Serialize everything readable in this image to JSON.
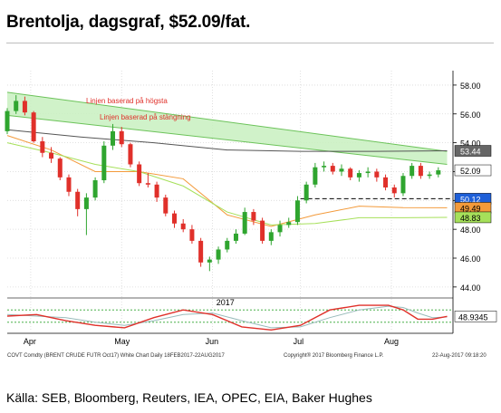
{
  "header": {
    "title": "Brentolja, dagsgraf, $52.09/fat."
  },
  "footer": {
    "source": "Källa: SEB, Bloomberg, Reuters, IEA, OPEC, EIA, Baker Hughes"
  },
  "chart_data": {
    "type": "line",
    "subtype": "candlestick",
    "title": "",
    "xlabel": "",
    "ylabel": "",
    "ylim": [
      43.3,
      59.0
    ],
    "yticks": [
      44.0,
      46.0,
      48.0,
      50.0,
      52.0,
      54.0,
      56.0,
      58.0
    ],
    "ytick_labels": [
      "44.00",
      "46.00",
      "48.00",
      "50.00",
      "52.00",
      "54.00",
      "56.00",
      "58.00"
    ],
    "month_labels": [
      {
        "label": "Apr",
        "day": 8
      },
      {
        "label": "May",
        "day": 39
      },
      {
        "label": "Jun",
        "day": 70
      },
      {
        "label": "Jul",
        "day": 100
      },
      {
        "label": "Aug",
        "day": 131
      }
    ],
    "year_label": "2017",
    "xlim": [
      0,
      152
    ],
    "grid": true,
    "channel": {
      "upper_label": "Linjen baserad på högsta",
      "lower_label": "Linjen baserad på stängning",
      "upper_start": 57.5,
      "upper_end": 53.4,
      "lower_start": 55.9,
      "lower_end": 52.5,
      "color": "#c8f0c0"
    },
    "support_level": 50.12,
    "price_tags": [
      {
        "label": "53.44",
        "value": 53.44,
        "bg": "#666666",
        "fg": "#ffffff"
      },
      {
        "label": "52.09",
        "value": 52.09,
        "bg": "#ffffff",
        "fg": "#000000"
      },
      {
        "label": "50.12",
        "value": 50.12,
        "bg": "#1e5fd8",
        "fg": "#ffffff"
      },
      {
        "label": "49.49",
        "value": 49.49,
        "bg": "#f39a3a",
        "fg": "#000000"
      },
      {
        "label": "48.83",
        "value": 48.83,
        "bg": "#a6e05a",
        "fg": "#000000"
      }
    ],
    "series": [
      {
        "name": "",
        "kind": "ohlc",
        "x": [
          0,
          3,
          6,
          9,
          12,
          15,
          18,
          21,
          24,
          27,
          30,
          33,
          36,
          39,
          42,
          45,
          48,
          51,
          54,
          57,
          60,
          63,
          66,
          69,
          72,
          75,
          78,
          81,
          84,
          87,
          90,
          93,
          96,
          99,
          102,
          105,
          108,
          111,
          114,
          117,
          120,
          123,
          126,
          129,
          132,
          135,
          138,
          141,
          144,
          147
        ],
        "open": [
          54.8,
          56.2,
          56.9,
          56.1,
          54.1,
          53.3,
          52.9,
          51.6,
          50.6,
          49.4,
          50.2,
          51.4,
          53.8,
          54.8,
          53.9,
          52.5,
          51.2,
          51.1,
          50.2,
          49.1,
          48.4,
          48.0,
          47.2,
          45.7,
          45.9,
          46.6,
          47.2,
          47.7,
          49.2,
          48.6,
          47.2,
          47.8,
          48.3,
          48.5,
          50.0,
          51.1,
          52.3,
          52.4,
          52.0,
          52.2,
          51.6,
          51.9,
          52.0,
          51.6,
          50.9,
          50.5,
          51.7,
          52.4,
          51.7,
          51.8
        ],
        "close": [
          56.2,
          56.9,
          56.1,
          54.1,
          53.3,
          52.9,
          51.6,
          50.6,
          49.4,
          50.2,
          51.4,
          53.8,
          54.8,
          53.9,
          52.5,
          51.2,
          51.1,
          50.2,
          49.1,
          48.4,
          48.0,
          47.2,
          45.7,
          45.9,
          46.6,
          47.2,
          47.7,
          49.2,
          48.6,
          47.2,
          47.8,
          48.3,
          48.5,
          50.0,
          51.1,
          52.3,
          52.4,
          52.0,
          52.2,
          51.6,
          51.9,
          52.0,
          51.6,
          50.9,
          50.5,
          51.7,
          52.4,
          51.7,
          51.8,
          52.09
        ],
        "high": [
          56.4,
          57.3,
          57.2,
          56.2,
          54.4,
          53.7,
          53.0,
          51.8,
          50.8,
          50.5,
          51.6,
          54.1,
          55.3,
          55.1,
          54.0,
          52.7,
          51.9,
          51.3,
          50.4,
          49.3,
          48.7,
          48.3,
          47.4,
          46.1,
          46.8,
          47.4,
          48.0,
          49.5,
          49.4,
          48.8,
          48.0,
          48.6,
          48.8,
          50.3,
          51.3,
          52.6,
          52.7,
          52.6,
          52.5,
          52.3,
          52.1,
          52.3,
          52.2,
          51.8,
          51.1,
          51.9,
          52.6,
          52.6,
          52.0,
          52.3
        ],
        "low": [
          54.6,
          56.0,
          55.9,
          54.0,
          53.0,
          52.6,
          51.4,
          50.3,
          48.9,
          47.6,
          50.0,
          51.2,
          53.5,
          53.7,
          52.3,
          51.0,
          50.9,
          49.9,
          48.9,
          48.1,
          47.8,
          47.0,
          45.4,
          45.1,
          45.6,
          46.4,
          47.0,
          47.6,
          48.3,
          47.0,
          46.9,
          47.5,
          48.1,
          48.3,
          49.8,
          50.9,
          52.0,
          51.8,
          51.7,
          51.4,
          51.3,
          51.6,
          51.3,
          50.7,
          50.2,
          50.3,
          51.5,
          51.5,
          51.5,
          51.6
        ]
      },
      {
        "name": "",
        "kind": "line",
        "color": "#555555",
        "x": [
          0,
          25,
          50,
          75,
          100,
          125,
          150
        ],
        "values": [
          54.9,
          54.4,
          54.0,
          53.5,
          53.4,
          53.4,
          53.44
        ]
      },
      {
        "name": "",
        "kind": "line",
        "color": "#f39a3a",
        "x": [
          0,
          15,
          30,
          45,
          60,
          75,
          90,
          105,
          120,
          135,
          150
        ],
        "values": [
          54.5,
          53.5,
          52.0,
          52.0,
          51.5,
          49.0,
          48.2,
          49.0,
          49.6,
          49.5,
          49.49
        ]
      },
      {
        "name": "",
        "kind": "line",
        "color": "#a6e05a",
        "x": [
          0,
          15,
          30,
          45,
          60,
          75,
          90,
          105,
          120,
          135,
          150
        ],
        "values": [
          54.0,
          53.3,
          52.5,
          52.0,
          51.0,
          49.2,
          48.3,
          48.4,
          48.8,
          48.8,
          48.83
        ]
      }
    ],
    "oscillator": {
      "last_value": "48.9345",
      "ylim": [
        0,
        100
      ],
      "upper_band": 70,
      "lower_band": 30,
      "x": [
        0,
        10,
        20,
        30,
        40,
        50,
        60,
        70,
        80,
        90,
        100,
        110,
        120,
        130,
        135,
        140,
        145,
        150
      ],
      "k": [
        50,
        55,
        35,
        20,
        12,
        45,
        70,
        55,
        15,
        5,
        20,
        70,
        85,
        85,
        70,
        40,
        40,
        49
      ],
      "d": [
        55,
        50,
        45,
        30,
        20,
        35,
        55,
        60,
        35,
        12,
        15,
        45,
        70,
        82,
        78,
        60,
        45,
        47
      ]
    },
    "footer_left": "COVT Comdty (BRENT CRUDE FUTR  Oct17) White Chart  Daily 18FEB2017-22AUG2017",
    "footer_mid": "Copyright® 2017 Bloomberg Finance L.P.",
    "footer_right": "22-Aug-2017 09:18:20"
  }
}
